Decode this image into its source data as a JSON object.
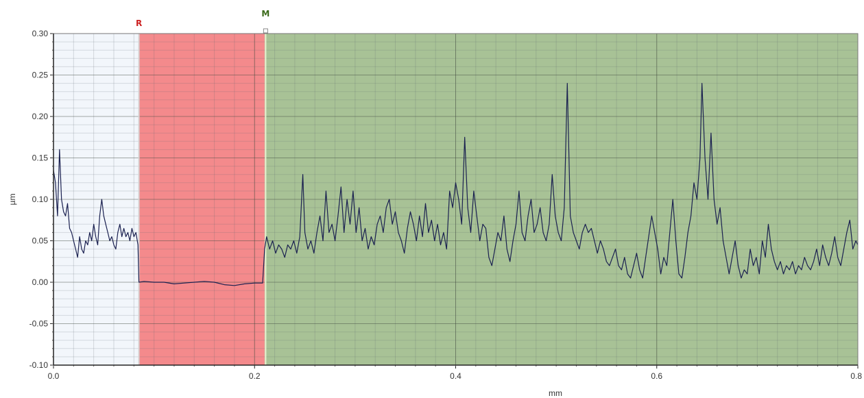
{
  "chart_data": {
    "type": "line",
    "title": "",
    "xlabel": "mm",
    "ylabel": "µm",
    "xlim": [
      0.0,
      0.8
    ],
    "ylim": [
      -0.1,
      0.3
    ],
    "x_ticks": [
      0.0,
      0.2,
      0.4,
      0.6,
      0.8
    ],
    "x_tick_labels": [
      "0.0",
      "0.2",
      "0.4",
      "0.6",
      "0.8"
    ],
    "y_ticks": [
      0.3,
      0.25,
      0.2,
      0.15,
      0.1,
      0.05,
      0.0,
      -0.05,
      -0.1
    ],
    "y_tick_labels": [
      "0.30",
      "0.25",
      "0.20",
      "0.15",
      "0.10",
      "0.05",
      "0.00",
      "-0.05",
      "-0.10"
    ],
    "grid": true,
    "legend": "none",
    "regions": [
      {
        "label": "",
        "x_start": 0.0,
        "x_end": 0.085,
        "color": "#f2f6fb"
      },
      {
        "label": "",
        "x_start": 0.085,
        "x_end": 0.21,
        "color": "#f48a8c"
      },
      {
        "label": "",
        "x_start": 0.21,
        "x_end": 0.8,
        "color": "#a8c296"
      }
    ],
    "markers": [
      {
        "label": "R",
        "x": 0.085,
        "color": "#cc2222"
      },
      {
        "label": "M",
        "x": 0.211,
        "color": "#3a6a1a"
      }
    ],
    "series": [
      {
        "name": "",
        "color": "#1a2050",
        "points": [
          [
            0.0,
            0.135
          ],
          [
            0.002,
            0.12
          ],
          [
            0.004,
            0.08
          ],
          [
            0.006,
            0.16
          ],
          [
            0.008,
            0.1
          ],
          [
            0.01,
            0.085
          ],
          [
            0.012,
            0.08
          ],
          [
            0.014,
            0.095
          ],
          [
            0.016,
            0.065
          ],
          [
            0.018,
            0.06
          ],
          [
            0.02,
            0.05
          ],
          [
            0.022,
            0.04
          ],
          [
            0.024,
            0.03
          ],
          [
            0.026,
            0.055
          ],
          [
            0.028,
            0.04
          ],
          [
            0.03,
            0.035
          ],
          [
            0.032,
            0.05
          ],
          [
            0.034,
            0.045
          ],
          [
            0.036,
            0.06
          ],
          [
            0.038,
            0.05
          ],
          [
            0.04,
            0.07
          ],
          [
            0.042,
            0.055
          ],
          [
            0.044,
            0.045
          ],
          [
            0.046,
            0.08
          ],
          [
            0.048,
            0.1
          ],
          [
            0.05,
            0.08
          ],
          [
            0.052,
            0.07
          ],
          [
            0.054,
            0.06
          ],
          [
            0.056,
            0.05
          ],
          [
            0.058,
            0.055
          ],
          [
            0.06,
            0.045
          ],
          [
            0.062,
            0.04
          ],
          [
            0.064,
            0.06
          ],
          [
            0.066,
            0.07
          ],
          [
            0.068,
            0.055
          ],
          [
            0.07,
            0.065
          ],
          [
            0.072,
            0.055
          ],
          [
            0.074,
            0.06
          ],
          [
            0.076,
            0.05
          ],
          [
            0.078,
            0.065
          ],
          [
            0.08,
            0.055
          ],
          [
            0.082,
            0.06
          ],
          [
            0.084,
            0.045
          ],
          [
            0.085,
            0.0
          ],
          [
            0.09,
            0.001
          ],
          [
            0.1,
            0.0
          ],
          [
            0.11,
            0.0
          ],
          [
            0.12,
            -0.002
          ],
          [
            0.13,
            -0.001
          ],
          [
            0.14,
            0.0
          ],
          [
            0.15,
            0.001
          ],
          [
            0.16,
            0.0
          ],
          [
            0.17,
            -0.003
          ],
          [
            0.18,
            -0.004
          ],
          [
            0.19,
            -0.002
          ],
          [
            0.2,
            -0.001
          ],
          [
            0.208,
            -0.001
          ],
          [
            0.21,
            0.04
          ],
          [
            0.212,
            0.055
          ],
          [
            0.215,
            0.04
          ],
          [
            0.218,
            0.05
          ],
          [
            0.221,
            0.035
          ],
          [
            0.224,
            0.045
          ],
          [
            0.227,
            0.04
          ],
          [
            0.23,
            0.03
          ],
          [
            0.233,
            0.045
          ],
          [
            0.236,
            0.04
          ],
          [
            0.239,
            0.05
          ],
          [
            0.242,
            0.035
          ],
          [
            0.245,
            0.055
          ],
          [
            0.248,
            0.13
          ],
          [
            0.25,
            0.06
          ],
          [
            0.253,
            0.04
          ],
          [
            0.256,
            0.05
          ],
          [
            0.259,
            0.035
          ],
          [
            0.262,
            0.06
          ],
          [
            0.265,
            0.08
          ],
          [
            0.268,
            0.05
          ],
          [
            0.271,
            0.11
          ],
          [
            0.274,
            0.06
          ],
          [
            0.277,
            0.07
          ],
          [
            0.28,
            0.05
          ],
          [
            0.283,
            0.08
          ],
          [
            0.286,
            0.115
          ],
          [
            0.289,
            0.06
          ],
          [
            0.292,
            0.1
          ],
          [
            0.295,
            0.07
          ],
          [
            0.298,
            0.11
          ],
          [
            0.301,
            0.06
          ],
          [
            0.304,
            0.09
          ],
          [
            0.307,
            0.05
          ],
          [
            0.31,
            0.065
          ],
          [
            0.313,
            0.04
          ],
          [
            0.316,
            0.055
          ],
          [
            0.319,
            0.045
          ],
          [
            0.322,
            0.07
          ],
          [
            0.325,
            0.08
          ],
          [
            0.328,
            0.06
          ],
          [
            0.331,
            0.09
          ],
          [
            0.334,
            0.1
          ],
          [
            0.337,
            0.07
          ],
          [
            0.34,
            0.085
          ],
          [
            0.343,
            0.06
          ],
          [
            0.346,
            0.05
          ],
          [
            0.349,
            0.035
          ],
          [
            0.352,
            0.065
          ],
          [
            0.355,
            0.085
          ],
          [
            0.358,
            0.07
          ],
          [
            0.361,
            0.05
          ],
          [
            0.364,
            0.08
          ],
          [
            0.367,
            0.055
          ],
          [
            0.37,
            0.095
          ],
          [
            0.373,
            0.06
          ],
          [
            0.376,
            0.075
          ],
          [
            0.379,
            0.05
          ],
          [
            0.382,
            0.07
          ],
          [
            0.385,
            0.045
          ],
          [
            0.388,
            0.06
          ],
          [
            0.391,
            0.04
          ],
          [
            0.394,
            0.11
          ],
          [
            0.397,
            0.09
          ],
          [
            0.4,
            0.12
          ],
          [
            0.403,
            0.1
          ],
          [
            0.406,
            0.07
          ],
          [
            0.409,
            0.175
          ],
          [
            0.412,
            0.09
          ],
          [
            0.415,
            0.06
          ],
          [
            0.418,
            0.11
          ],
          [
            0.421,
            0.08
          ],
          [
            0.424,
            0.05
          ],
          [
            0.427,
            0.07
          ],
          [
            0.43,
            0.065
          ],
          [
            0.433,
            0.03
          ],
          [
            0.436,
            0.02
          ],
          [
            0.439,
            0.04
          ],
          [
            0.442,
            0.06
          ],
          [
            0.445,
            0.05
          ],
          [
            0.448,
            0.08
          ],
          [
            0.451,
            0.04
          ],
          [
            0.454,
            0.025
          ],
          [
            0.457,
            0.05
          ],
          [
            0.46,
            0.07
          ],
          [
            0.463,
            0.11
          ],
          [
            0.466,
            0.06
          ],
          [
            0.469,
            0.05
          ],
          [
            0.472,
            0.08
          ],
          [
            0.475,
            0.1
          ],
          [
            0.478,
            0.06
          ],
          [
            0.481,
            0.07
          ],
          [
            0.484,
            0.09
          ],
          [
            0.487,
            0.06
          ],
          [
            0.49,
            0.05
          ],
          [
            0.493,
            0.07
          ],
          [
            0.496,
            0.13
          ],
          [
            0.499,
            0.08
          ],
          [
            0.502,
            0.06
          ],
          [
            0.505,
            0.05
          ],
          [
            0.508,
            0.09
          ],
          [
            0.511,
            0.24
          ],
          [
            0.514,
            0.08
          ],
          [
            0.517,
            0.06
          ],
          [
            0.52,
            0.05
          ],
          [
            0.523,
            0.04
          ],
          [
            0.526,
            0.06
          ],
          [
            0.529,
            0.07
          ],
          [
            0.532,
            0.06
          ],
          [
            0.535,
            0.065
          ],
          [
            0.538,
            0.05
          ],
          [
            0.541,
            0.035
          ],
          [
            0.544,
            0.05
          ],
          [
            0.547,
            0.04
          ],
          [
            0.55,
            0.025
          ],
          [
            0.553,
            0.02
          ],
          [
            0.556,
            0.03
          ],
          [
            0.559,
            0.04
          ],
          [
            0.562,
            0.02
          ],
          [
            0.565,
            0.015
          ],
          [
            0.568,
            0.03
          ],
          [
            0.571,
            0.01
          ],
          [
            0.574,
            0.005
          ],
          [
            0.577,
            0.02
          ],
          [
            0.58,
            0.035
          ],
          [
            0.583,
            0.015
          ],
          [
            0.586,
            0.005
          ],
          [
            0.589,
            0.03
          ],
          [
            0.592,
            0.055
          ],
          [
            0.595,
            0.08
          ],
          [
            0.598,
            0.06
          ],
          [
            0.601,
            0.04
          ],
          [
            0.604,
            0.01
          ],
          [
            0.607,
            0.03
          ],
          [
            0.61,
            0.02
          ],
          [
            0.613,
            0.06
          ],
          [
            0.616,
            0.1
          ],
          [
            0.619,
            0.05
          ],
          [
            0.622,
            0.01
          ],
          [
            0.625,
            0.005
          ],
          [
            0.628,
            0.03
          ],
          [
            0.631,
            0.06
          ],
          [
            0.634,
            0.08
          ],
          [
            0.637,
            0.12
          ],
          [
            0.64,
            0.1
          ],
          [
            0.643,
            0.15
          ],
          [
            0.645,
            0.24
          ],
          [
            0.648,
            0.15
          ],
          [
            0.651,
            0.1
          ],
          [
            0.654,
            0.18
          ],
          [
            0.657,
            0.1
          ],
          [
            0.66,
            0.07
          ],
          [
            0.663,
            0.09
          ],
          [
            0.666,
            0.05
          ],
          [
            0.669,
            0.03
          ],
          [
            0.672,
            0.01
          ],
          [
            0.675,
            0.03
          ],
          [
            0.678,
            0.05
          ],
          [
            0.681,
            0.02
          ],
          [
            0.684,
            0.005
          ],
          [
            0.687,
            0.015
          ],
          [
            0.69,
            0.01
          ],
          [
            0.693,
            0.04
          ],
          [
            0.696,
            0.02
          ],
          [
            0.699,
            0.03
          ],
          [
            0.702,
            0.01
          ],
          [
            0.705,
            0.05
          ],
          [
            0.708,
            0.03
          ],
          [
            0.711,
            0.07
          ],
          [
            0.714,
            0.04
          ],
          [
            0.717,
            0.025
          ],
          [
            0.72,
            0.015
          ],
          [
            0.723,
            0.025
          ],
          [
            0.726,
            0.01
          ],
          [
            0.729,
            0.02
          ],
          [
            0.732,
            0.015
          ],
          [
            0.735,
            0.025
          ],
          [
            0.738,
            0.01
          ],
          [
            0.741,
            0.02
          ],
          [
            0.744,
            0.015
          ],
          [
            0.747,
            0.03
          ],
          [
            0.75,
            0.02
          ],
          [
            0.753,
            0.015
          ],
          [
            0.756,
            0.025
          ],
          [
            0.759,
            0.04
          ],
          [
            0.762,
            0.02
          ],
          [
            0.765,
            0.045
          ],
          [
            0.768,
            0.03
          ],
          [
            0.771,
            0.02
          ],
          [
            0.774,
            0.035
          ],
          [
            0.777,
            0.055
          ],
          [
            0.78,
            0.03
          ],
          [
            0.783,
            0.02
          ],
          [
            0.786,
            0.04
          ],
          [
            0.789,
            0.06
          ],
          [
            0.792,
            0.075
          ],
          [
            0.795,
            0.04
          ],
          [
            0.798,
            0.05
          ],
          [
            0.8,
            0.045
          ]
        ]
      }
    ]
  }
}
